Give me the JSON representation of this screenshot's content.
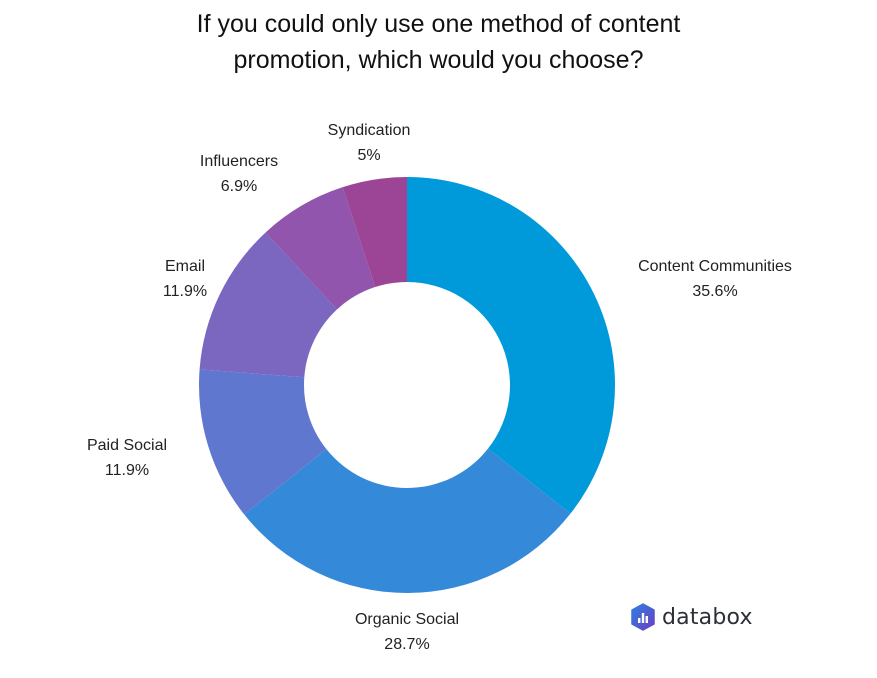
{
  "title": {
    "line1": "If you could only use one method of content",
    "line2": "promotion, which would you choose?"
  },
  "brand": {
    "name": "databox",
    "icon": "databox-hexagon-icon"
  },
  "chart_data": {
    "type": "pie",
    "variant": "donut",
    "title": "If you could only use one method of content promotion, which would you choose?",
    "categories": [
      "Content Communities",
      "Organic Social",
      "Paid Social",
      "Email",
      "Influencers",
      "Syndication"
    ],
    "values": [
      35.6,
      28.7,
      11.9,
      11.9,
      6.9,
      5.0
    ],
    "labels": [
      "35.6%",
      "28.7%",
      "11.9%",
      "11.9%",
      "6.9%",
      "5%"
    ],
    "colors": [
      "#009ADB",
      "#3589D9",
      "#5F77CF",
      "#7B66C0",
      "#9155AD",
      "#9C4495"
    ],
    "start_angle": "12 o'clock",
    "direction": "clockwise",
    "legend": "none (labels outside slices)"
  },
  "slice_labels": [
    {
      "name": "Content Communities",
      "value": "35.6%"
    },
    {
      "name": "Organic Social",
      "value": "28.7%"
    },
    {
      "name": "Paid Social",
      "value": "11.9%"
    },
    {
      "name": "Email",
      "value": "11.9%"
    },
    {
      "name": "Influencers",
      "value": "6.9%"
    },
    {
      "name": "Syndication",
      "value": "5%"
    }
  ]
}
